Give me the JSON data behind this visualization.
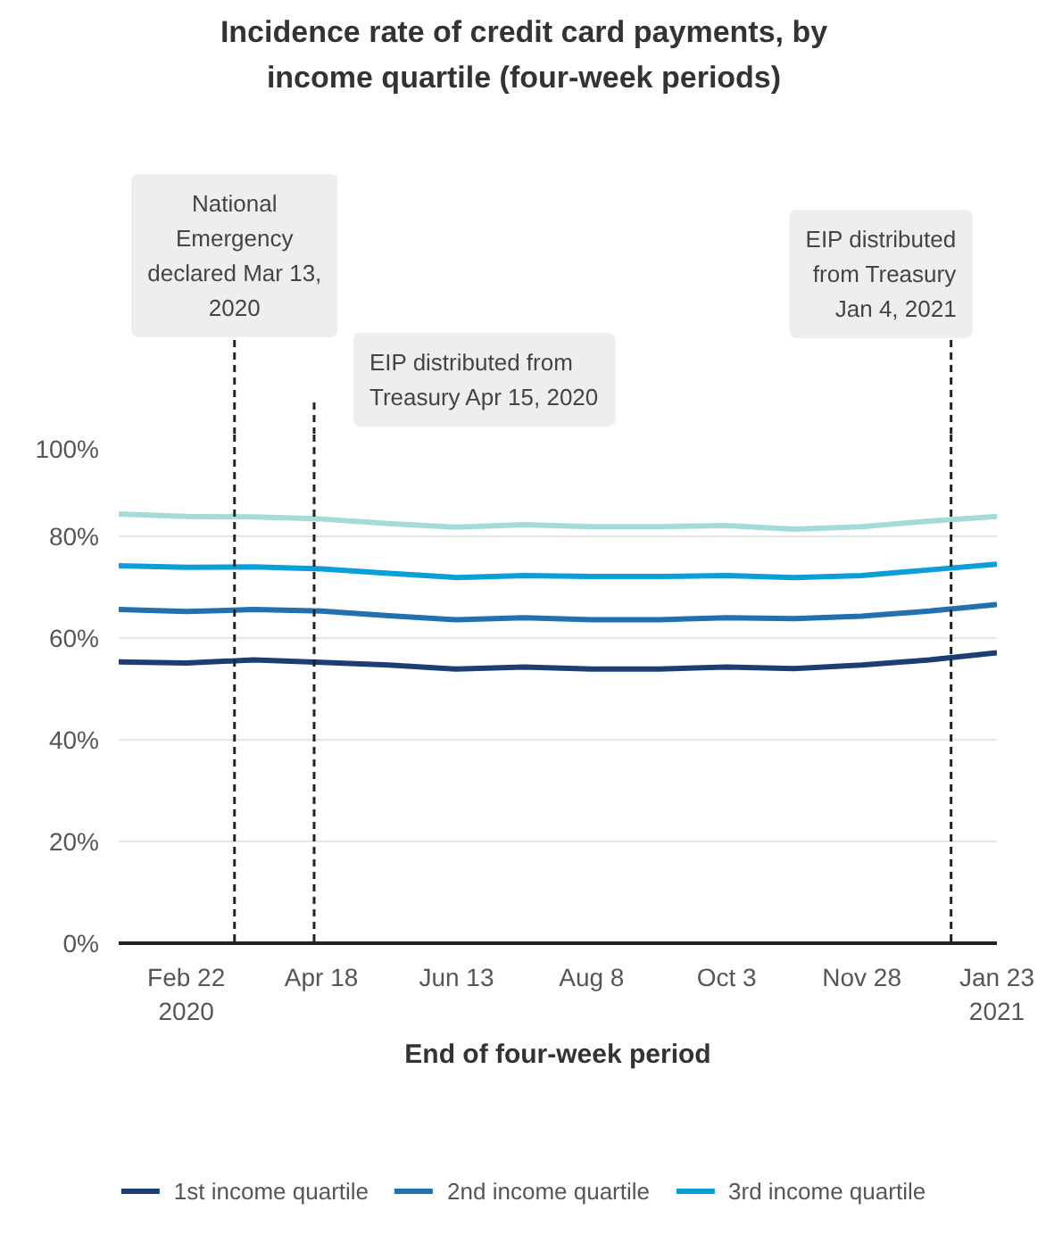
{
  "chart_data": {
    "type": "line",
    "title": "Incidence rate of credit card payments, by income quartile (four-week periods)",
    "xlabel": "End of four-week period",
    "x": [
      "2020-01-25",
      "2020-02-22",
      "2020-03-21",
      "2020-04-18",
      "2020-05-16",
      "2020-06-13",
      "2020-07-11",
      "2020-08-08",
      "2020-09-05",
      "2020-10-03",
      "2020-10-31",
      "2020-11-28",
      "2020-12-26",
      "2021-01-23"
    ],
    "series": [
      {
        "name": "1st income quartile",
        "color": "#1c3f73",
        "values": [
          55.3,
          55.1,
          55.7,
          55.2,
          54.7,
          53.9,
          54.3,
          53.9,
          53.9,
          54.3,
          54.0,
          54.7,
          55.7,
          57.1
        ]
      },
      {
        "name": "2nd income quartile",
        "color": "#2171b0",
        "values": [
          65.6,
          65.2,
          65.6,
          65.3,
          64.4,
          63.6,
          64.0,
          63.6,
          63.6,
          64.0,
          63.8,
          64.3,
          65.3,
          66.6
        ]
      },
      {
        "name": "3rd income quartile",
        "color": "#0a9edb",
        "values": [
          74.2,
          73.9,
          74.0,
          73.6,
          72.7,
          71.9,
          72.3,
          72.1,
          72.1,
          72.3,
          71.9,
          72.3,
          73.4,
          74.5
        ]
      },
      {
        "color": "#a3dbd8",
        "values": [
          84.4,
          83.9,
          83.8,
          83.4,
          82.5,
          81.8,
          82.3,
          81.9,
          81.9,
          82.1,
          81.4,
          81.9,
          83.0,
          83.9
        ]
      }
    ],
    "xlim": [
      "2020-01-25",
      "2021-01-23"
    ],
    "xticks": [
      {
        "value": "2020-02-22",
        "label": "Feb 22\n2020"
      },
      {
        "value": "2020-04-18",
        "label": "Apr 18"
      },
      {
        "value": "2020-06-13",
        "label": "Jun 13"
      },
      {
        "value": "2020-08-08",
        "label": "Aug 8"
      },
      {
        "value": "2020-10-03",
        "label": "Oct 3"
      },
      {
        "value": "2020-11-28",
        "label": "Nov 28"
      },
      {
        "value": "2021-01-23",
        "label": "Jan 23\n2021"
      }
    ],
    "ylim": [
      0,
      100
    ],
    "yticks": [
      {
        "value": 0,
        "label": "0%"
      },
      {
        "value": 20,
        "label": "20%"
      },
      {
        "value": 40,
        "label": "40%"
      },
      {
        "value": 60,
        "label": "60%"
      },
      {
        "value": 80,
        "label": "80%"
      },
      {
        "value": 100,
        "label": "100%"
      }
    ],
    "ref_lines": [
      {
        "axis": "x",
        "value": "2020-03-13",
        "label": "National Emergency declared Mar 13, 2020",
        "line_style": "dashed"
      },
      {
        "axis": "x",
        "value": "2020-04-15",
        "label": "EIP distributed from Treasury Apr 15, 2020",
        "line_style": "dashed"
      },
      {
        "axis": "x",
        "value": "2021-01-04",
        "label": "EIP distributed from Treasury Jan 4, 2021",
        "line_style": "dashed"
      }
    ],
    "grid": "y",
    "legend": "bottom",
    "marker": "none",
    "line_style": "solid"
  }
}
